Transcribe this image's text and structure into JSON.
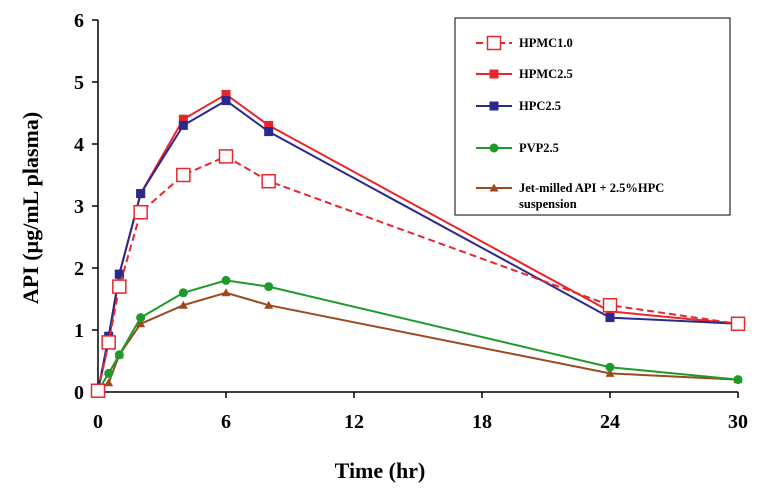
{
  "chart_data": {
    "type": "line",
    "title": "",
    "xlabel": "Time (hr)",
    "ylabel": "API (µg/mL plasma)",
    "xlim": [
      0,
      30
    ],
    "ylim": [
      0,
      6
    ],
    "xticks": [
      0,
      6,
      12,
      18,
      24,
      30
    ],
    "yticks": [
      0,
      1,
      2,
      3,
      4,
      5,
      6
    ],
    "grid": false,
    "legend_position": "top-right",
    "series": [
      {
        "name": "HPMC1.0",
        "color": "#e8262b",
        "line_style": "dashed",
        "marker": "open-square",
        "x": [
          0,
          0.5,
          1,
          2,
          4,
          6,
          8,
          24,
          30
        ],
        "y": [
          0.02,
          0.8,
          1.7,
          2.9,
          3.5,
          3.8,
          3.4,
          1.4,
          1.1
        ]
      },
      {
        "name": "HPMC2.5",
        "color": "#e8262b",
        "line_style": "solid",
        "marker": "filled-square",
        "x": [
          0,
          0.5,
          1,
          2,
          4,
          6,
          8,
          24,
          30
        ],
        "y": [
          0.02,
          0.8,
          1.9,
          3.2,
          4.4,
          4.8,
          4.3,
          1.3,
          1.1
        ]
      },
      {
        "name": "HPC2.5",
        "color": "#2a2a8c",
        "line_style": "solid",
        "marker": "filled-square",
        "x": [
          0,
          0.5,
          1,
          2,
          4,
          6,
          8,
          24,
          30
        ],
        "y": [
          0.02,
          0.9,
          1.9,
          3.2,
          4.3,
          4.7,
          4.2,
          1.2,
          1.1
        ]
      },
      {
        "name": "PVP2.5",
        "color": "#1e9a2a",
        "line_style": "solid",
        "marker": "circle",
        "x": [
          0,
          0.5,
          1,
          2,
          4,
          6,
          8,
          24,
          30
        ],
        "y": [
          0.02,
          0.3,
          0.6,
          1.2,
          1.6,
          1.8,
          1.7,
          0.4,
          0.2
        ]
      },
      {
        "name": "Jet-milled API + 2.5%HPC suspension",
        "legend_lines": [
          "Jet-milled API + 2.5%HPC",
          "suspension"
        ],
        "color": "#9a4a1e",
        "line_style": "solid",
        "marker": "triangle",
        "x": [
          0,
          0.5,
          1,
          2,
          4,
          6,
          8,
          24,
          30
        ],
        "y": [
          0.02,
          0.15,
          0.6,
          1.1,
          1.4,
          1.6,
          1.4,
          0.3,
          0.2
        ]
      }
    ]
  }
}
